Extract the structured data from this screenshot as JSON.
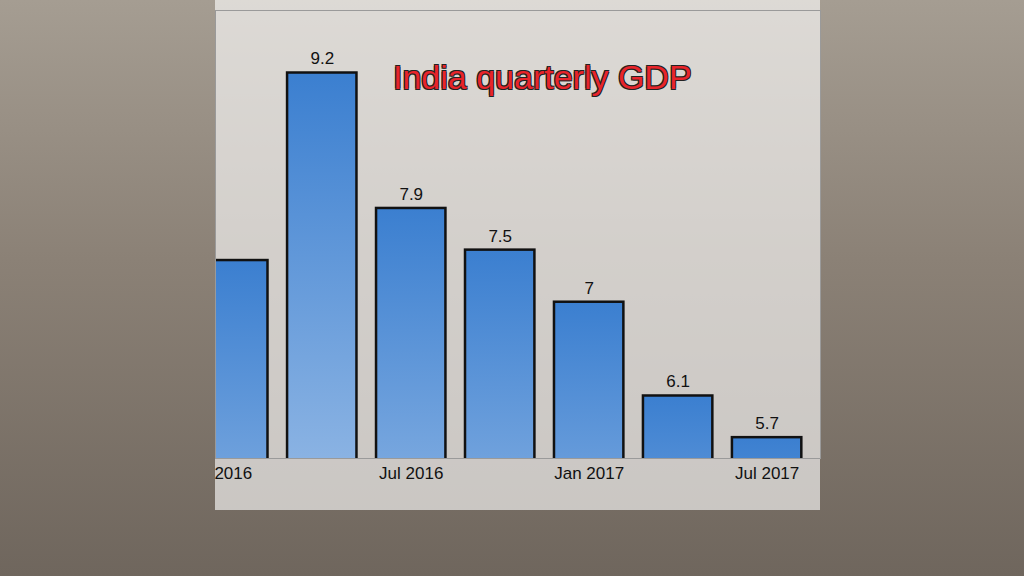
{
  "chart_data": {
    "type": "bar",
    "title": "India quarterly GDP",
    "categories": [
      "2016",
      null,
      "Jul 2016",
      null,
      "Jan 2017",
      null,
      "Jul 2017"
    ],
    "values": [
      7.4,
      9.2,
      7.9,
      7.5,
      7,
      6.1,
      5.7
    ],
    "value_labels": [
      null,
      "9.2",
      "7.9",
      "7.5",
      "7",
      "6.1",
      "5.7"
    ],
    "color": "#3b7fd0",
    "ylim": [
      5.5,
      9.8
    ],
    "grid": false,
    "data_labels": true,
    "tick_labels": "x"
  }
}
